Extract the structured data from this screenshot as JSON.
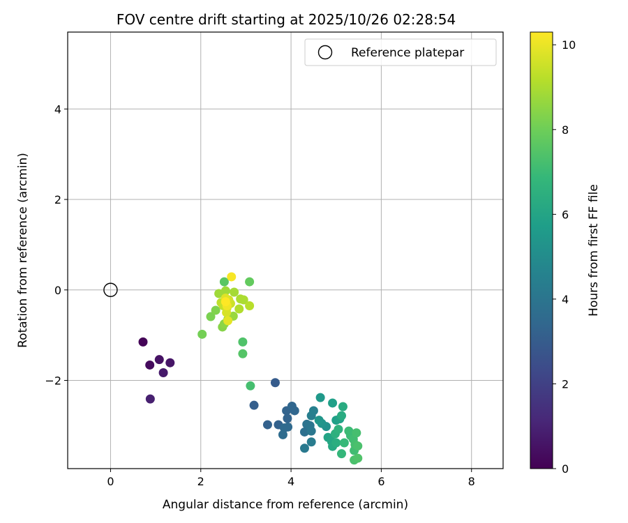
{
  "chart_data": {
    "type": "scatter",
    "title": "FOV centre drift starting at 2025/10/26 02:28:54",
    "xlabel": "Angular distance from reference (arcmin)",
    "ylabel": "Rotation from reference (arcmin)",
    "xlim": [
      -0.95,
      8.7
    ],
    "ylim": [
      -3.95,
      5.7
    ],
    "xticks": [
      0,
      2,
      4,
      6,
      8
    ],
    "yticks": [
      -2,
      0,
      2,
      4
    ],
    "xtick_labels": [
      "0",
      "2",
      "4",
      "6",
      "8"
    ],
    "ytick_labels": [
      "−2",
      "0",
      "2",
      "4"
    ],
    "grid": true,
    "legend": {
      "position": "top-right",
      "label": "Reference platepar"
    },
    "reference_point": {
      "x": 0,
      "y": 0
    },
    "colorbar": {
      "label": "Hours from first FF file",
      "range": [
        0,
        10.3
      ],
      "ticks": [
        0,
        2,
        4,
        6,
        8,
        10
      ],
      "tick_labels": [
        "0",
        "2",
        "4",
        "6",
        "8",
        "10"
      ],
      "colormap": "viridis",
      "colors": [
        "#440154",
        "#482878",
        "#3e4989",
        "#31688e",
        "#26828e",
        "#1f9e89",
        "#35b779",
        "#6ece58",
        "#b5de2b",
        "#fde725"
      ]
    },
    "points": [
      {
        "x": 0.72,
        "y": -1.15,
        "t": 0.1
      },
      {
        "x": 0.87,
        "y": -1.66,
        "t": 0.3
      },
      {
        "x": 1.08,
        "y": -1.54,
        "t": 0.5
      },
      {
        "x": 1.32,
        "y": -1.61,
        "t": 0.6
      },
      {
        "x": 1.17,
        "y": -1.83,
        "t": 0.7
      },
      {
        "x": 0.88,
        "y": -2.41,
        "t": 0.9
      },
      {
        "x": 3.65,
        "y": -2.05,
        "t": 3.0
      },
      {
        "x": 3.18,
        "y": -2.55,
        "t": 3.1
      },
      {
        "x": 3.48,
        "y": -2.98,
        "t": 3.2
      },
      {
        "x": 3.72,
        "y": -2.98,
        "t": 3.2
      },
      {
        "x": 3.9,
        "y": -2.67,
        "t": 3.3
      },
      {
        "x": 3.92,
        "y": -2.84,
        "t": 3.3
      },
      {
        "x": 4.02,
        "y": -2.57,
        "t": 3.4
      },
      {
        "x": 4.08,
        "y": -2.67,
        "t": 3.4
      },
      {
        "x": 3.85,
        "y": -3.05,
        "t": 3.5
      },
      {
        "x": 3.93,
        "y": -3.03,
        "t": 3.5
      },
      {
        "x": 3.82,
        "y": -3.2,
        "t": 3.6
      },
      {
        "x": 4.3,
        "y": -3.14,
        "t": 3.8
      },
      {
        "x": 4.35,
        "y": -2.97,
        "t": 3.9
      },
      {
        "x": 4.42,
        "y": -3.0,
        "t": 4.0
      },
      {
        "x": 4.45,
        "y": -3.12,
        "t": 4.1
      },
      {
        "x": 4.3,
        "y": -3.5,
        "t": 4.2
      },
      {
        "x": 4.45,
        "y": -3.36,
        "t": 4.3
      },
      {
        "x": 4.45,
        "y": -2.78,
        "t": 4.4
      },
      {
        "x": 4.5,
        "y": -2.67,
        "t": 4.5
      },
      {
        "x": 4.65,
        "y": -2.38,
        "t": 5.5
      },
      {
        "x": 4.62,
        "y": -2.88,
        "t": 5.4
      },
      {
        "x": 4.68,
        "y": -2.95,
        "t": 5.3
      },
      {
        "x": 4.78,
        "y": -3.02,
        "t": 5.2
      },
      {
        "x": 4.92,
        "y": -2.5,
        "t": 5.8
      },
      {
        "x": 5.0,
        "y": -2.88,
        "t": 5.8
      },
      {
        "x": 5.08,
        "y": -2.85,
        "t": 5.9
      },
      {
        "x": 5.15,
        "y": -2.58,
        "t": 6.3
      },
      {
        "x": 5.12,
        "y": -2.78,
        "t": 6.3
      },
      {
        "x": 4.82,
        "y": -3.26,
        "t": 6.0
      },
      {
        "x": 4.9,
        "y": -3.35,
        "t": 6.1
      },
      {
        "x": 4.92,
        "y": -3.46,
        "t": 6.2
      },
      {
        "x": 5.0,
        "y": -3.38,
        "t": 6.4
      },
      {
        "x": 4.98,
        "y": -3.18,
        "t": 6.5
      },
      {
        "x": 5.05,
        "y": -3.08,
        "t": 6.6
      },
      {
        "x": 5.12,
        "y": -3.62,
        "t": 6.8
      },
      {
        "x": 5.18,
        "y": -3.38,
        "t": 6.9
      },
      {
        "x": 5.28,
        "y": -3.12,
        "t": 7.0
      },
      {
        "x": 5.32,
        "y": -3.22,
        "t": 7.0
      },
      {
        "x": 5.38,
        "y": -3.3,
        "t": 7.1
      },
      {
        "x": 5.4,
        "y": -3.55,
        "t": 7.1
      },
      {
        "x": 5.45,
        "y": -3.16,
        "t": 7.2
      },
      {
        "x": 5.42,
        "y": -3.42,
        "t": 7.2
      },
      {
        "x": 5.48,
        "y": -3.45,
        "t": 7.3
      },
      {
        "x": 5.4,
        "y": -3.76,
        "t": 7.3
      },
      {
        "x": 5.48,
        "y": -3.72,
        "t": 7.4
      },
      {
        "x": 3.1,
        "y": -2.12,
        "t": 7.2
      },
      {
        "x": 2.93,
        "y": -1.15,
        "t": 7.4
      },
      {
        "x": 2.93,
        "y": -1.41,
        "t": 7.5
      },
      {
        "x": 2.03,
        "y": -0.98,
        "t": 8.1
      },
      {
        "x": 2.52,
        "y": 0.18,
        "t": 7.6
      },
      {
        "x": 3.08,
        "y": 0.18,
        "t": 7.8
      },
      {
        "x": 2.22,
        "y": -0.59,
        "t": 8.2
      },
      {
        "x": 2.33,
        "y": -0.45,
        "t": 8.3
      },
      {
        "x": 2.48,
        "y": -0.82,
        "t": 8.4
      },
      {
        "x": 2.52,
        "y": -0.75,
        "t": 8.5
      },
      {
        "x": 2.6,
        "y": -0.65,
        "t": 8.6
      },
      {
        "x": 2.72,
        "y": -0.58,
        "t": 8.7
      },
      {
        "x": 2.4,
        "y": -0.08,
        "t": 8.8
      },
      {
        "x": 2.55,
        "y": -0.02,
        "t": 8.8
      },
      {
        "x": 2.74,
        "y": -0.05,
        "t": 8.9
      },
      {
        "x": 2.88,
        "y": -0.2,
        "t": 9.0
      },
      {
        "x": 2.95,
        "y": -0.22,
        "t": 9.0
      },
      {
        "x": 2.85,
        "y": -0.42,
        "t": 9.1
      },
      {
        "x": 3.08,
        "y": -0.35,
        "t": 9.2
      },
      {
        "x": 2.45,
        "y": -0.28,
        "t": 9.3
      },
      {
        "x": 2.5,
        "y": -0.35,
        "t": 9.4
      },
      {
        "x": 2.58,
        "y": -0.4,
        "t": 9.5
      },
      {
        "x": 2.66,
        "y": -0.3,
        "t": 9.5
      },
      {
        "x": 2.62,
        "y": -0.22,
        "t": 9.6
      },
      {
        "x": 2.57,
        "y": -0.5,
        "t": 9.7
      },
      {
        "x": 2.55,
        "y": -0.18,
        "t": 9.8
      },
      {
        "x": 2.6,
        "y": -0.68,
        "t": 9.9
      },
      {
        "x": 2.68,
        "y": 0.29,
        "t": 10.2
      },
      {
        "x": 2.55,
        "y": -0.26,
        "t": 10.3
      },
      {
        "x": 2.58,
        "y": -0.35,
        "t": 10.1
      }
    ]
  }
}
